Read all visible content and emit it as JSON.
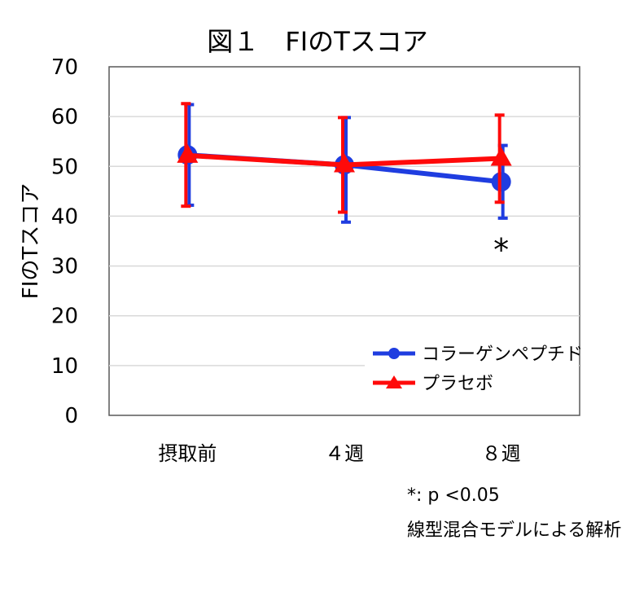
{
  "chart_data": {
    "type": "line",
    "title": "図１　FIのTスコア",
    "xlabel": "",
    "ylabel": "FIのTスコア",
    "ylim": [
      0,
      70
    ],
    "yticks": [
      0,
      10,
      20,
      30,
      40,
      50,
      60,
      70
    ],
    "grid": true,
    "legend_position": "bottom-right",
    "categories": [
      "摂取前",
      "４週",
      "８週"
    ],
    "series": [
      {
        "name": "コラーゲンペプチド",
        "color": "#1f3de0",
        "marker": "circle",
        "values": [
          52.3,
          50.3,
          46.9
        ],
        "error_lower": [
          42.2,
          38.8,
          39.6
        ],
        "error_upper": [
          62.4,
          59.8,
          54.2
        ]
      },
      {
        "name": "プラセボ",
        "color": "#ff0a0a",
        "marker": "triangle",
        "values": [
          52.2,
          50.3,
          51.6
        ],
        "error_lower": [
          42.0,
          40.8,
          42.8
        ],
        "error_upper": [
          62.6,
          59.8,
          60.3
        ]
      }
    ],
    "annotations": [
      {
        "text": "*",
        "category": "８週",
        "y": 33.5
      }
    ]
  },
  "notes": {
    "significance": "*: p <0.05",
    "method": "線型混合モデルによる解析"
  }
}
